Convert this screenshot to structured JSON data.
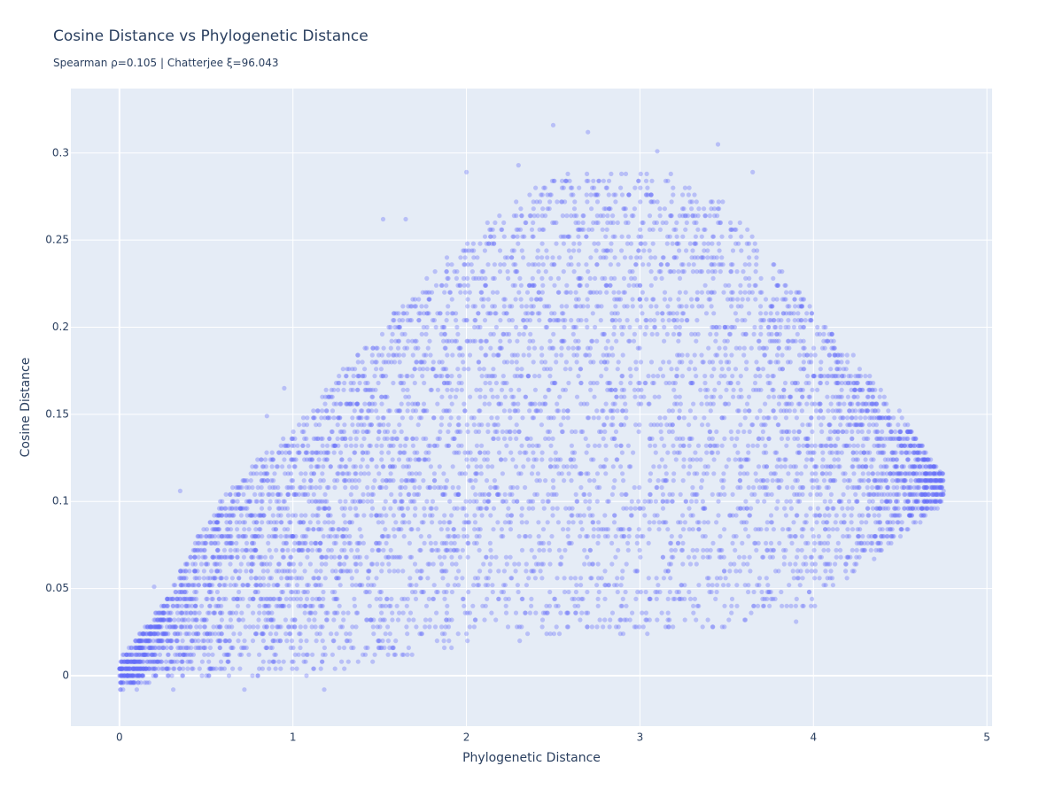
{
  "chart_data": {
    "type": "scatter",
    "title": "Cosine Distance vs Phylogenetic Distance",
    "subtitle": "Spearman ρ=0.105 | Chatterjee ξ=96.043",
    "xlabel": "Phylogenetic Distance",
    "ylabel": "Cosine Distance",
    "xlim": [
      -0.28,
      5.03
    ],
    "ylim": [
      -0.029,
      0.337
    ],
    "x_ticks": [
      "0",
      "1",
      "2",
      "3",
      "4",
      "5"
    ],
    "y_ticks": [
      "0",
      "0.05",
      "0.1",
      "0.15",
      "0.2",
      "0.25",
      "0.3"
    ],
    "x_tick_values": [
      0,
      1,
      2,
      3,
      4,
      5
    ],
    "y_tick_values": [
      0,
      0.05,
      0.1,
      0.15,
      0.2,
      0.25,
      0.3
    ],
    "grid": true,
    "marker_color": "#636efa",
    "background_color": "#e5ecf6",
    "y_quantization_step": 0.004,
    "point_cloud_envelope": {
      "x": [
        0.0,
        0.25,
        0.5,
        0.75,
        1.0,
        1.25,
        1.5,
        1.75,
        2.0,
        2.25,
        2.5,
        2.75,
        3.0,
        3.25,
        3.5,
        3.75,
        4.0,
        4.25,
        4.5,
        4.75
      ],
      "y_min": [
        -0.008,
        0.0,
        0.0,
        0.0,
        0.0,
        0.004,
        0.008,
        0.012,
        0.016,
        0.02,
        0.02,
        0.024,
        0.024,
        0.024,
        0.028,
        0.032,
        0.04,
        0.06,
        0.08,
        0.1
      ],
      "y_max": [
        0.008,
        0.04,
        0.09,
        0.12,
        0.14,
        0.17,
        0.2,
        0.225,
        0.25,
        0.27,
        0.285,
        0.29,
        0.29,
        0.285,
        0.27,
        0.24,
        0.21,
        0.18,
        0.15,
        0.115
      ]
    },
    "outliers": [
      {
        "x": 2.5,
        "y": 0.316
      },
      {
        "x": 2.7,
        "y": 0.312
      },
      {
        "x": 3.45,
        "y": 0.305
      },
      {
        "x": 3.1,
        "y": 0.301
      },
      {
        "x": 2.3,
        "y": 0.293
      },
      {
        "x": 2.0,
        "y": 0.289
      },
      {
        "x": 3.65,
        "y": 0.289
      },
      {
        "x": 1.52,
        "y": 0.262
      },
      {
        "x": 1.65,
        "y": 0.262
      },
      {
        "x": 0.95,
        "y": 0.165
      },
      {
        "x": 0.35,
        "y": 0.106
      },
      {
        "x": 0.2,
        "y": 0.051
      },
      {
        "x": 0.85,
        "y": 0.149
      },
      {
        "x": 1.18,
        "y": -0.008
      },
      {
        "x": 0.72,
        "y": -0.008
      },
      {
        "x": 0.31,
        "y": -0.008
      },
      {
        "x": 0.1,
        "y": -0.008
      },
      {
        "x": 4.73,
        "y": 0.117
      },
      {
        "x": 4.75,
        "y": 0.106
      },
      {
        "x": 4.35,
        "y": 0.067
      },
      {
        "x": 3.9,
        "y": 0.031
      }
    ]
  }
}
